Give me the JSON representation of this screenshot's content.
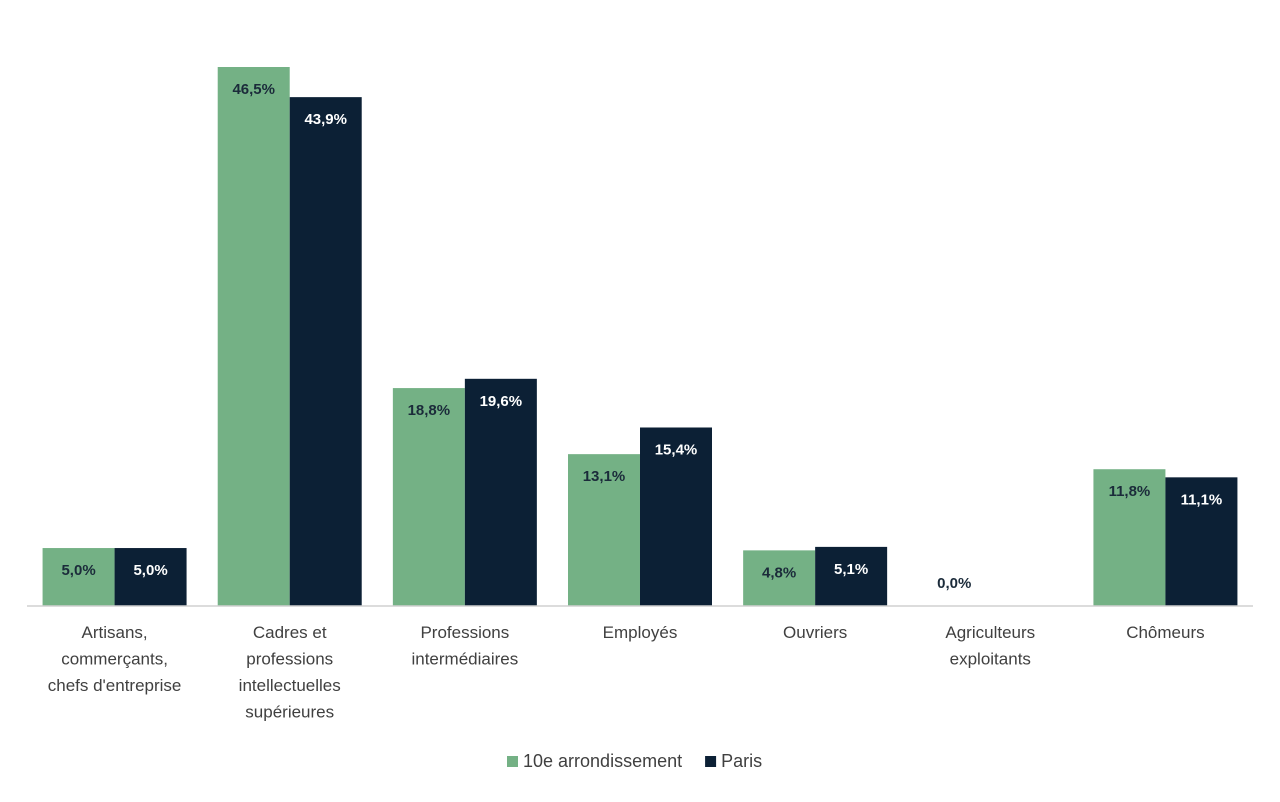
{
  "chart_data": {
    "type": "bar",
    "categories": [
      [
        "Artisans,",
        "commerçants,",
        "chefs d'entreprise"
      ],
      [
        "Cadres et",
        "professions",
        "intellectuelles",
        "supérieures"
      ],
      [
        "Professions",
        "intermédiaires"
      ],
      [
        "Employés"
      ],
      [
        "Ouvriers"
      ],
      [
        "Agriculteurs",
        "exploitants"
      ],
      [
        "Chômeurs"
      ]
    ],
    "series": [
      {
        "name": "10e arrondissement",
        "color": "#74b185",
        "values": [
          5.0,
          46.5,
          18.8,
          13.1,
          4.8,
          0.0,
          11.8
        ],
        "value_labels": [
          "5,0%",
          "46,5%",
          "18,8%",
          "13,1%",
          "4,8%",
          "0,0%",
          "11,8%"
        ]
      },
      {
        "name": "Paris",
        "color": "#0c2035",
        "values": [
          5.0,
          43.9,
          19.6,
          15.4,
          5.1,
          null,
          11.1
        ],
        "value_labels": [
          "5,0%",
          "43,9%",
          "19,6%",
          "15,4%",
          "5,1%",
          null,
          "11,1%"
        ]
      }
    ],
    "legend": "bottom"
  }
}
